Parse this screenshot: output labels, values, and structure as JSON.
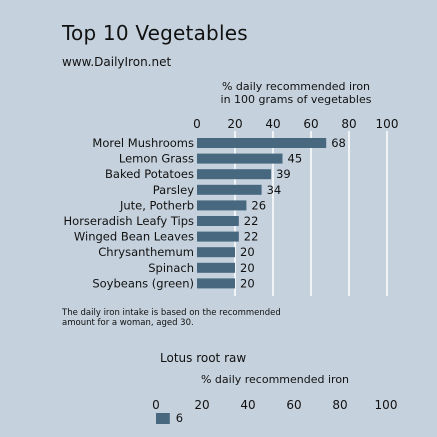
{
  "header": {
    "title": "Top 10 Vegetables",
    "subtitle": "www.DailyIron.net"
  },
  "footnote": "The daily iron intake is based on the recommended amount for a woman, aged 30.",
  "colors": {
    "bar": "#47687f",
    "background": "#c5d1dc",
    "gridline": "#ffffff"
  },
  "chart_data": [
    {
      "type": "bar",
      "orientation": "horizontal",
      "xlabel": [
        "% daily recommended iron",
        "in 100 grams of vegetables"
      ],
      "xlim": [
        0,
        100
      ],
      "xticks": [
        0,
        20,
        40,
        60,
        80,
        100
      ],
      "categories": [
        "Morel Mushrooms",
        "Lemon Grass",
        "Baked Potatoes",
        "Parsley",
        "Jute, Potherb",
        "Horseradish Leafy Tips",
        "Winged Bean Leaves",
        "Chrysanthemum",
        "Spinach",
        "Soybeans (green)"
      ],
      "values": [
        68,
        45,
        39,
        34,
        26,
        22,
        22,
        20,
        20,
        20
      ],
      "grid": true
    },
    {
      "type": "bar",
      "orientation": "horizontal",
      "title": "Lotus root raw",
      "xlabel": [
        "% daily recommended iron"
      ],
      "xlim": [
        0,
        100
      ],
      "xticks": [
        0,
        20,
        40,
        60,
        80,
        100
      ],
      "legend": {
        "label": "6",
        "position": "bottom-left"
      },
      "values": [
        6
      ]
    }
  ]
}
